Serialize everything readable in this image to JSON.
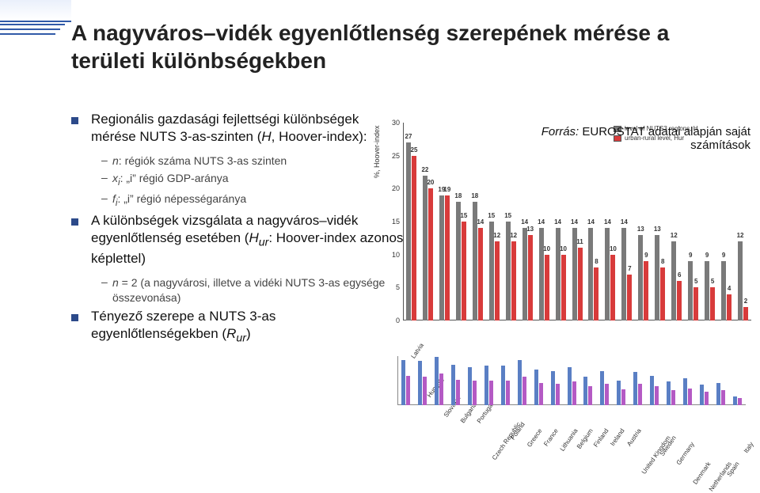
{
  "title": "A nagyváros–vidék egyenlőtlenség szerepének mérése a területi különbségekben",
  "bullets": [
    {
      "text_html": "Regionális gazdasági fejlettségi különbségek mérése NUTS 3-as-szinten (<i>H</i>, Hoover-index):",
      "subs": [
        {
          "html": "<i>n</i>: régiók száma NUTS 3-as szinten"
        },
        {
          "html": "<i>x<sub>i</sub></i>: „i” régió GDP-aránya"
        },
        {
          "html": "<i>f<sub>i</sub></i>: „i” régió népességaránya"
        }
      ]
    },
    {
      "text_html": "A különbségek vizsgálata a nagyváros–vidék egyenlőtlenség esetében (<i>H<sub>ur</sub></i>: Hoover-index azonos képlettel)",
      "subs": [
        {
          "html": "<i>n</i> = 2 (a nagyvárosi, illetve a vidéki NUTS 3-as egysége összevonása)"
        }
      ]
    },
    {
      "text_html": "Tényező szerepe a NUTS 3-as egyenlőtlenségekben (<i>R<sub>ur</sub></i>)",
      "subs": []
    }
  ],
  "source_line1": "Forrás:",
  "source_line2a": "EUROSTAT adatai alapján saját",
  "source_line2b": "számítások",
  "chart_main": {
    "type": "bar",
    "ylabel": "%, Hoover-index",
    "ylim": [
      0,
      30
    ],
    "ytick_step": 5,
    "legend": [
      {
        "label": "level of NUTS3 regions, H",
        "color": "#7a7a7a"
      },
      {
        "label": "urban-rural level, Hur",
        "color": "#d83b3b"
      }
    ],
    "bar_colors": {
      "H": "#7a7a7a",
      "Hur": "#d83b3b"
    },
    "background_color": "#ffffff",
    "categories": [
      "Latvia",
      "Hungary",
      "Slovakia",
      "Bulgaria",
      "Portugal",
      "Czech Republic",
      "Poland",
      "Greece",
      "France",
      "Lithuania",
      "Belgium",
      "Finland",
      "Ireland",
      "Austria",
      "United Kingdom",
      "Sweden",
      "Germany",
      "Denmark",
      "Netherlands",
      "Spain",
      "Italy"
    ],
    "H": [
      27,
      22,
      19,
      18,
      18,
      15,
      15,
      14,
      14,
      14,
      14,
      14,
      14,
      14,
      13,
      13,
      12,
      9,
      9,
      9,
      12
    ],
    "Hur": [
      25,
      20,
      19,
      15,
      14,
      12,
      12,
      13,
      10,
      10,
      11,
      8,
      10,
      7,
      9,
      8,
      6,
      5,
      5,
      4,
      2
    ],
    "label_fontsize": 8,
    "value_fontsize": 8
  },
  "chart_small": {
    "type": "bar",
    "ylim": [
      0,
      100
    ],
    "bar_colors": {
      "a": "#5a7fc4",
      "b": "#b45ac4"
    },
    "values_a": [
      92,
      90,
      99,
      82,
      78,
      80,
      80,
      92,
      72,
      70,
      78,
      58,
      70,
      50,
      68,
      60,
      48,
      55,
      42,
      45,
      18
    ],
    "values_b": [
      60,
      58,
      64,
      52,
      50,
      50,
      50,
      58,
      45,
      44,
      48,
      38,
      44,
      32,
      43,
      38,
      30,
      34,
      28,
      30,
      14
    ]
  },
  "colors": {
    "accent": "#315aa8",
    "text": "#111111",
    "subtext": "#444444"
  }
}
